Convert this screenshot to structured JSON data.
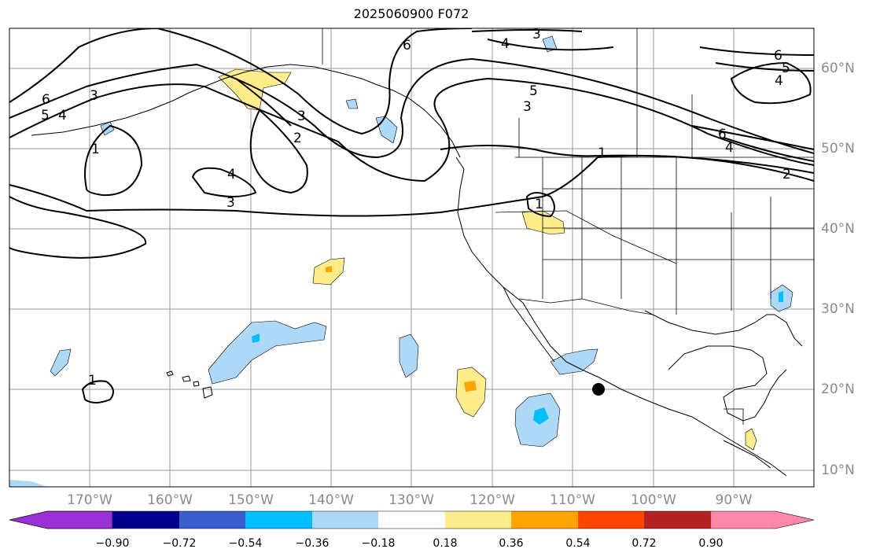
{
  "title": "2025060900 F072",
  "latitude_labels": [
    "60°N",
    "50°N",
    "40°N",
    "30°N",
    "20°N",
    "10°N"
  ],
  "longitude_labels": [
    "170°W",
    "160°W",
    "150°W",
    "140°W",
    "130°W",
    "120°W",
    "110°W",
    "100°W",
    "90°W"
  ],
  "contour_labels": [
    "6",
    "5",
    "4",
    "3",
    "2",
    "1"
  ],
  "colorbar": {
    "tick_labels": [
      "−0.90",
      "−0.72",
      "−0.54",
      "−0.36",
      "−0.18",
      "0.18",
      "0.36",
      "0.54",
      "0.72",
      "0.90"
    ],
    "colors": [
      "#9b30d6",
      "#00008b",
      "#3a5fcd",
      "#00bfff",
      "#add8f7",
      "#ffffff",
      "#ffec8b",
      "#ffa500",
      "#ff4500",
      "#b22222",
      "#ff88aa"
    ]
  },
  "colors": {
    "grid": "#999999",
    "contour": "#000000",
    "marker": "#000000"
  }
}
